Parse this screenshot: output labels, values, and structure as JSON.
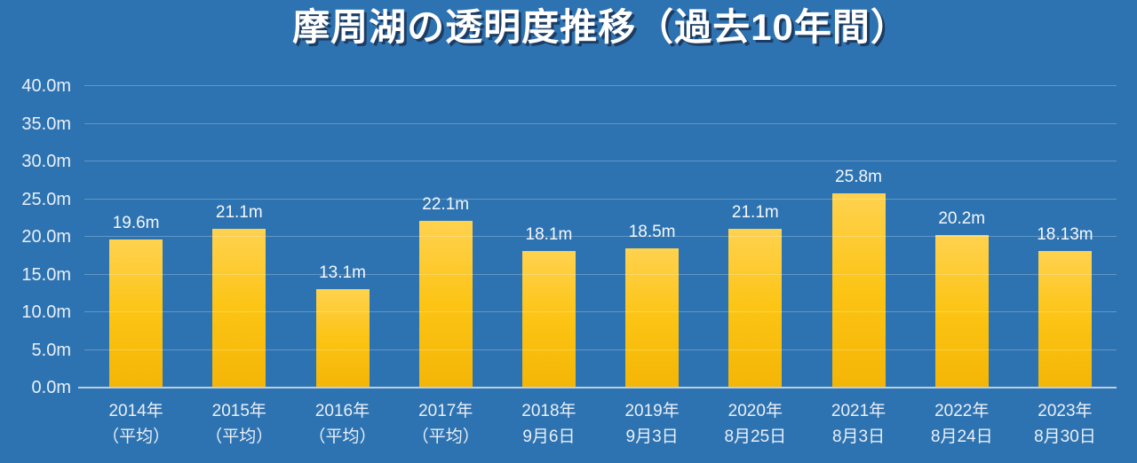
{
  "chart_data": {
    "type": "bar",
    "title": "摩周湖の透明度推移（過去10年間）",
    "xlabel": "",
    "ylabel": "",
    "unit": "m",
    "categories": [
      [
        "2014年",
        "（平均）"
      ],
      [
        "2015年",
        "（平均）"
      ],
      [
        "2016年",
        "（平均）"
      ],
      [
        "2017年",
        "（平均）"
      ],
      [
        "2018年",
        "9月6日"
      ],
      [
        "2019年",
        "9月3日"
      ],
      [
        "2020年",
        "8月25日"
      ],
      [
        "2021年",
        "8月3日"
      ],
      [
        "2022年",
        "8月24日"
      ],
      [
        "2023年",
        "8月30日"
      ]
    ],
    "values": [
      19.6,
      21.1,
      13.1,
      22.1,
      18.1,
      18.5,
      21.1,
      25.8,
      20.2,
      18.13
    ],
    "value_labels": [
      "19.6m",
      "21.1m",
      "13.1m",
      "22.1m",
      "18.1m",
      "18.5m",
      "21.1m",
      "25.8m",
      "20.2m",
      "18.13m"
    ],
    "ylim": [
      0,
      40
    ],
    "ytick_step": 5,
    "ytick_labels": [
      "0.0m",
      "5.0m",
      "10.0m",
      "15.0m",
      "20.0m",
      "25.0m",
      "30.0m",
      "35.0m",
      "40.0m"
    ],
    "grid": true,
    "legend": null,
    "colors": {
      "background": "#2e73b1",
      "bar_top": "#ffd24f",
      "bar_mid": "#fcc414",
      "bar_bottom": "#f4b506",
      "gridline": "rgba(255,255,255,0.25)",
      "axis_line": "#b9cfe6",
      "title_color": "#ffffff",
      "title_shadow": "#1d3c63",
      "tick_color": "#e9f0f8",
      "value_color": "#f4f8fc"
    }
  }
}
